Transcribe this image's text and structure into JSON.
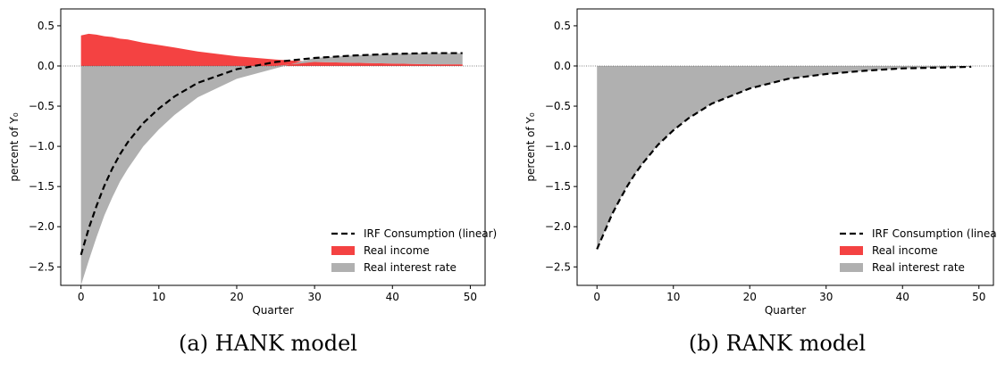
{
  "chart_data": [
    {
      "type": "area",
      "caption": "(a) HANK model",
      "xlabel": "Quarter",
      "ylabel": "percent of Y₀",
      "x": [
        0,
        1,
        2,
        3,
        4,
        5,
        6,
        8,
        10,
        12,
        15,
        20,
        25,
        30,
        35,
        40,
        45,
        49
      ],
      "series": [
        {
          "name": "IRF Consumption (linear)",
          "mark": "line",
          "dash": true,
          "color": "#000000",
          "values": [
            -2.35,
            -2.02,
            -1.74,
            -1.49,
            -1.28,
            -1.1,
            -0.95,
            -0.71,
            -0.53,
            -0.38,
            -0.21,
            -0.04,
            0.05,
            0.1,
            0.13,
            0.15,
            0.16,
            0.16
          ]
        },
        {
          "name": "Real income",
          "mark": "area",
          "color": "#f44242",
          "values": [
            0.38,
            0.4,
            0.39,
            0.37,
            0.36,
            0.34,
            0.33,
            0.29,
            0.26,
            0.23,
            0.18,
            0.12,
            0.08,
            0.05,
            0.04,
            0.03,
            0.02,
            0.02
          ]
        },
        {
          "name": "Real interest rate",
          "mark": "area",
          "color": "#b0b0b0",
          "values": [
            -2.73,
            -2.42,
            -2.13,
            -1.86,
            -1.64,
            -1.44,
            -1.28,
            -1.0,
            -0.79,
            -0.61,
            -0.39,
            -0.16,
            -0.03,
            0.05,
            0.09,
            0.12,
            0.14,
            0.14
          ]
        }
      ],
      "xlim": [
        -2.6,
        51.9
      ],
      "xticks": [
        0,
        10,
        20,
        30,
        40,
        50
      ],
      "ylim": [
        -2.73,
        0.71
      ],
      "yticks": [
        {
          "value": -2.5,
          "label": "−2.5"
        },
        {
          "value": -2.0,
          "label": "−2.0"
        },
        {
          "value": -1.5,
          "label": "−1.5"
        },
        {
          "value": -1.0,
          "label": "−1.0"
        },
        {
          "value": -0.5,
          "label": "−0.5"
        },
        {
          "value": 0,
          "label": "0.0"
        },
        0.5
      ],
      "legend": "lower right"
    },
    {
      "type": "area",
      "caption": "(b) RANK model",
      "xlabel": "Quarter",
      "ylabel": "percent of Y₀",
      "x": [
        0,
        1,
        2,
        3,
        4,
        5,
        6,
        8,
        10,
        12,
        15,
        20,
        25,
        30,
        35,
        40,
        45,
        49
      ],
      "series": [
        {
          "name": "IRF Consumption (linear)",
          "mark": "line",
          "dash": true,
          "color": "#000000",
          "values": [
            -2.28,
            -2.06,
            -1.84,
            -1.66,
            -1.49,
            -1.34,
            -1.21,
            -0.98,
            -0.8,
            -0.65,
            -0.47,
            -0.28,
            -0.16,
            -0.1,
            -0.06,
            -0.03,
            -0.02,
            -0.01
          ]
        },
        {
          "name": "Real income",
          "mark": "area",
          "color": "#f44242",
          "values": [
            0,
            0,
            0,
            0,
            0,
            0,
            0,
            0,
            0,
            0,
            0,
            0,
            0,
            0,
            0,
            0,
            0,
            0
          ]
        },
        {
          "name": "Real interest rate",
          "mark": "area",
          "color": "#b0b0b0",
          "values": [
            -2.28,
            -2.06,
            -1.84,
            -1.66,
            -1.49,
            -1.34,
            -1.21,
            -0.98,
            -0.8,
            -0.65,
            -0.47,
            -0.28,
            -0.16,
            -0.1,
            -0.06,
            -0.03,
            -0.02,
            -0.01
          ]
        }
      ],
      "xlim": [
        -2.6,
        51.9
      ],
      "xticks": [
        0,
        10,
        20,
        30,
        40,
        50
      ],
      "ylim": [
        -2.73,
        0.71
      ],
      "yticks": [
        {
          "value": -2.5,
          "label": "−2.5"
        },
        {
          "value": -2.0,
          "label": "−2.0"
        },
        {
          "value": -1.5,
          "label": "−1.5"
        },
        {
          "value": -1.0,
          "label": "−1.0"
        },
        {
          "value": -0.5,
          "label": "−0.5"
        },
        {
          "value": 0,
          "label": "0.0"
        },
        0.5
      ],
      "legend": "lower right"
    }
  ]
}
